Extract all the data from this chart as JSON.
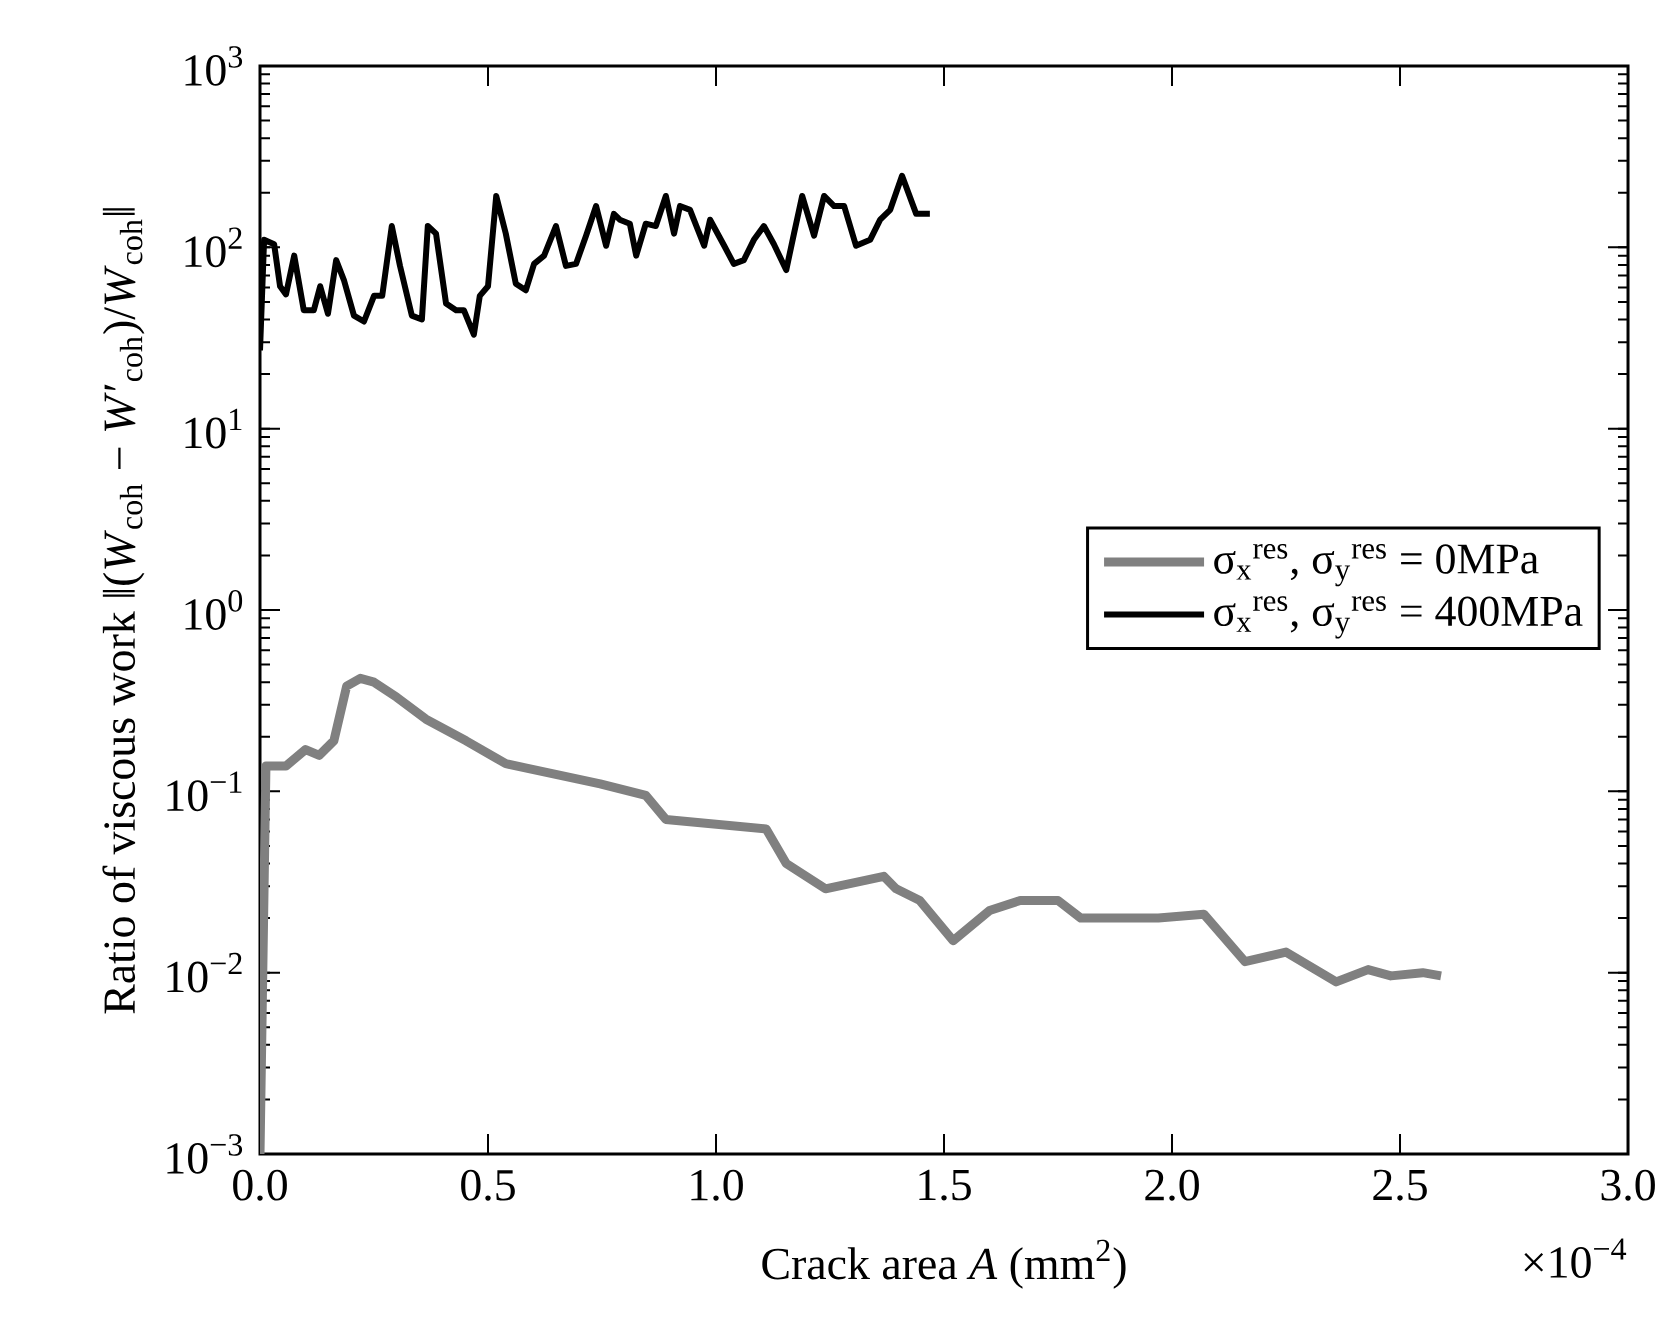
{
  "chart_data": {
    "type": "line",
    "xlabel": "Crack area *A* (mm$^{2}$)",
    "ylabel": "Ratio of viscous work ‖(*W*$_{coh}$ − *W*′$_{coh}$)/*W*$_{coh}$‖",
    "annotations": [
      "×10$^{−4}$"
    ],
    "series": [
      {
        "name": "σ$_{x}$$^{res}$, σ$_{y}$$^{res}$ = 0MPa",
        "color": "#808080",
        "x": [
          0,
          0.013,
          0.057,
          0.1,
          0.13,
          0.162,
          0.19,
          0.22,
          0.25,
          0.3,
          0.364,
          0.452,
          0.539,
          0.746,
          0.846,
          0.89,
          1.11,
          1.154,
          1.24,
          1.368,
          1.395,
          1.447,
          1.52,
          1.6,
          1.667,
          1.75,
          1.8,
          1.97,
          2.07,
          2.16,
          2.25,
          2.36,
          2.43,
          2.48,
          2.55,
          2.59
        ],
        "values": [
          0.001,
          0.138,
          0.138,
          0.17,
          0.158,
          0.19,
          0.38,
          0.42,
          0.4,
          0.33,
          0.25,
          0.19,
          0.142,
          0.11,
          0.095,
          0.07,
          0.062,
          0.04,
          0.029,
          0.034,
          0.029,
          0.025,
          0.015,
          0.022,
          0.025,
          0.025,
          0.02,
          0.02,
          0.021,
          0.0115,
          0.013,
          0.0089,
          0.0104,
          0.0096,
          0.01,
          0.0096
        ]
      },
      {
        "name": "σ$_{x}$$^{res}$, σ$_{y}$$^{res}$ = 400MPa",
        "color": "#000000",
        "x": [
          0,
          0.009,
          0.031,
          0.044,
          0.057,
          0.075,
          0.096,
          0.118,
          0.132,
          0.149,
          0.167,
          0.184,
          0.206,
          0.228,
          0.25,
          0.268,
          0.289,
          0.307,
          0.333,
          0.355,
          0.368,
          0.386,
          0.408,
          0.43,
          0.447,
          0.469,
          0.482,
          0.5,
          0.518,
          0.539,
          0.561,
          0.583,
          0.601,
          0.623,
          0.649,
          0.671,
          0.693,
          0.715,
          0.737,
          0.759,
          0.776,
          0.789,
          0.811,
          0.825,
          0.846,
          0.868,
          0.89,
          0.908,
          0.921,
          0.943,
          0.974,
          0.987,
          1.018,
          1.039,
          1.061,
          1.083,
          1.105,
          1.127,
          1.154,
          1.171,
          1.189,
          1.215,
          1.237,
          1.259,
          1.281,
          1.307,
          1.338,
          1.36,
          1.382,
          1.408,
          1.439,
          1.469
        ],
        "values": [
          27,
          110,
          104,
          61,
          55,
          90,
          45,
          45,
          61,
          43,
          85,
          66,
          42,
          39,
          54,
          54,
          131,
          79,
          42,
          40,
          131,
          119,
          49,
          45,
          45,
          33,
          54,
          61,
          192,
          119,
          63,
          58,
          81,
          90,
          131,
          79,
          81,
          116,
          169,
          102,
          153,
          142,
          135,
          90,
          135,
          131,
          192,
          119,
          169,
          161,
          102,
          142,
          102,
          81,
          85,
          110,
          131,
          104,
          75,
          119,
          192,
          116,
          192,
          169,
          169,
          102,
          110,
          142,
          161,
          248,
          153,
          153
        ]
      }
    ],
    "xlim": [
      0,
      3.0
    ],
    "xticks": [
      {
        "value": 0,
        "label": "0.0"
      },
      {
        "value": 0.5,
        "label": "0.5"
      },
      {
        "value": 1.0,
        "label": "1.0"
      },
      {
        "value": 1.5,
        "label": "1.5"
      },
      {
        "value": 2.0,
        "label": "2.0"
      },
      {
        "value": 2.5,
        "label": "2.5"
      },
      {
        "value": 3.0,
        "label": "3.0"
      }
    ],
    "ylim": [
      0.001,
      1000
    ],
    "yticks": [
      {
        "value": 0.001,
        "label": "10$^{−3}$"
      },
      {
        "value": 0.01,
        "label": "10$^{−2}$"
      },
      {
        "value": 0.1,
        "label": "10$^{−1}$"
      },
      {
        "value": 1,
        "label": "10$^{0}$"
      },
      {
        "value": 10,
        "label": "10$^{1}$"
      },
      {
        "value": 100,
        "label": "10$^{2}$"
      },
      {
        "value": 1000,
        "label": "10$^{3}$"
      }
    ],
    "log": "y",
    "legend": "right",
    "line_style": "solid"
  }
}
